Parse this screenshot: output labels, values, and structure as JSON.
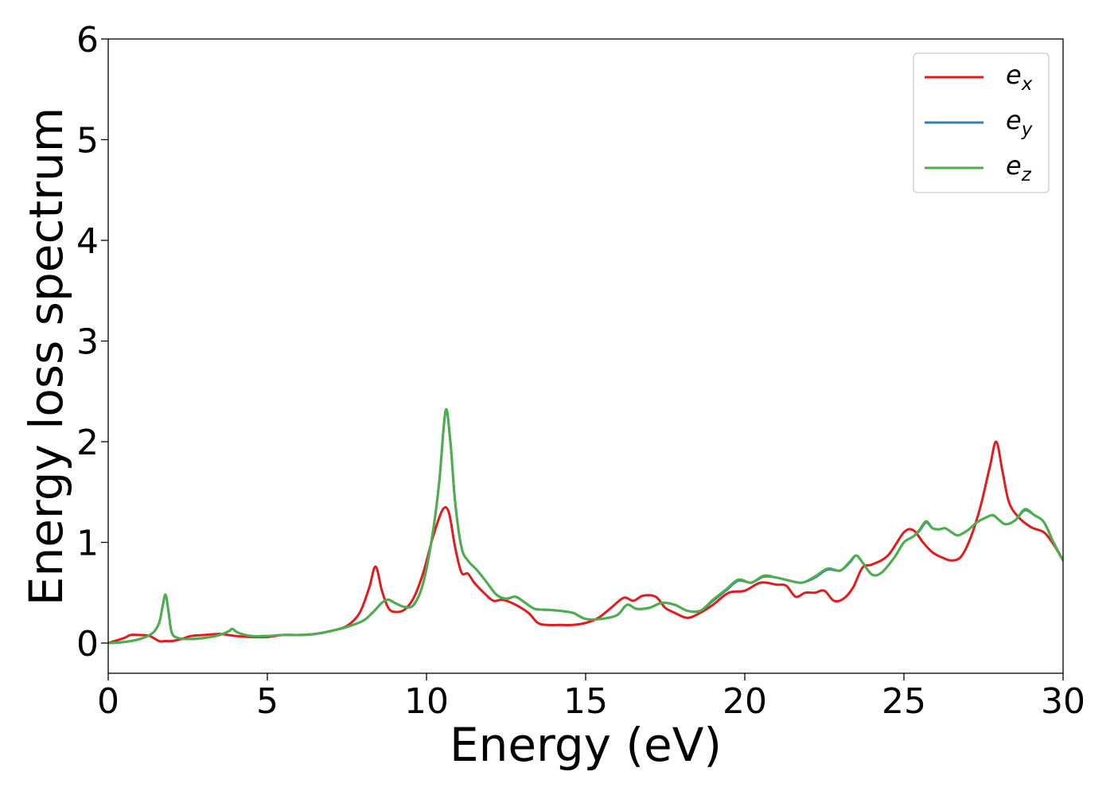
{
  "chart_data": {
    "type": "line",
    "title": "",
    "xlabel": "Energy (eV)",
    "ylabel": "Energy loss spectrum",
    "xlim": [
      0,
      30
    ],
    "ylim": [
      -0.3,
      6
    ],
    "xticks": [
      0,
      5,
      10,
      15,
      20,
      25,
      30
    ],
    "yticks": [
      0,
      1,
      2,
      3,
      4,
      5,
      6
    ],
    "grid": false,
    "legend_position": "top-right",
    "series": [
      {
        "name": "e_x",
        "label_base": "e",
        "label_sub": "x",
        "color": "#e41a1c",
        "x": [
          0,
          0.5,
          0.7,
          1,
          1.3,
          1.6,
          1.8,
          2,
          2.3,
          2.6,
          3,
          3.5,
          4,
          4.5,
          5,
          5.5,
          6,
          6.5,
          7,
          7.5,
          7.9,
          8.2,
          8.4,
          8.6,
          8.8,
          9,
          9.3,
          9.6,
          9.9,
          10.2,
          10.5,
          10.7,
          10.9,
          11.1,
          11.3,
          11.5,
          11.8,
          12.1,
          12.4,
          12.8,
          13.2,
          13.5,
          13.8,
          14.2,
          14.6,
          15,
          15.4,
          15.8,
          16.2,
          16.5,
          16.8,
          17.2,
          17.5,
          17.8,
          18.2,
          18.6,
          19,
          19.5,
          20,
          20.5,
          21,
          21.3,
          21.6,
          21.9,
          22.2,
          22.5,
          22.8,
          23.1,
          23.4,
          23.7,
          24,
          24.5,
          25,
          25.3,
          25.6,
          25.9,
          26.2,
          26.5,
          26.8,
          27.1,
          27.4,
          27.7,
          27.9,
          28.1,
          28.3,
          28.6,
          29,
          29.4,
          29.7,
          30
        ],
        "y": [
          0,
          0.05,
          0.08,
          0.08,
          0.07,
          0.02,
          0.02,
          0.02,
          0.04,
          0.07,
          0.08,
          0.09,
          0.07,
          0.06,
          0.06,
          0.08,
          0.08,
          0.09,
          0.12,
          0.17,
          0.3,
          0.55,
          0.76,
          0.52,
          0.35,
          0.31,
          0.33,
          0.45,
          0.7,
          1.05,
          1.32,
          1.3,
          0.95,
          0.7,
          0.69,
          0.6,
          0.5,
          0.42,
          0.43,
          0.38,
          0.3,
          0.2,
          0.18,
          0.18,
          0.18,
          0.2,
          0.25,
          0.35,
          0.45,
          0.42,
          0.47,
          0.46,
          0.35,
          0.3,
          0.25,
          0.3,
          0.38,
          0.5,
          0.52,
          0.6,
          0.58,
          0.57,
          0.46,
          0.5,
          0.5,
          0.52,
          0.42,
          0.44,
          0.55,
          0.75,
          0.78,
          0.87,
          1.1,
          1.12,
          1.0,
          0.9,
          0.85,
          0.82,
          0.86,
          1.05,
          1.35,
          1.75,
          2.0,
          1.7,
          1.4,
          1.25,
          1.15,
          1.1,
          0.98,
          0.82
        ]
      },
      {
        "name": "e_y",
        "label_base": "e",
        "label_sub": "y",
        "color": "#377eb8",
        "x": [
          0,
          0.5,
          1,
          1.4,
          1.6,
          1.7,
          1.8,
          1.9,
          2,
          2.2,
          2.5,
          3,
          3.5,
          3.8,
          3.9,
          4.1,
          4.5,
          5,
          5.5,
          6,
          6.5,
          7,
          7.5,
          8,
          8.3,
          8.6,
          8.8,
          9,
          9.3,
          9.6,
          9.9,
          10.2,
          10.4,
          10.6,
          10.75,
          10.9,
          11.1,
          11.3,
          11.6,
          11.9,
          12.2,
          12.5,
          12.8,
          13.1,
          13.4,
          13.8,
          14.2,
          14.6,
          15,
          15.5,
          16,
          16.3,
          16.6,
          17,
          17.4,
          17.8,
          18.2,
          18.6,
          19,
          19.4,
          19.8,
          20.2,
          20.6,
          21,
          21.4,
          21.8,
          22.2,
          22.6,
          23,
          23.3,
          23.5,
          23.7,
          24,
          24.3,
          24.7,
          25,
          25.3,
          25.5,
          25.7,
          25.9,
          26.1,
          26.3,
          26.5,
          26.7,
          27,
          27.3,
          27.6,
          27.8,
          28,
          28.2,
          28.5,
          28.8,
          29.1,
          29.4,
          29.7,
          30
        ],
        "y": [
          0,
          0.01,
          0.04,
          0.1,
          0.2,
          0.35,
          0.48,
          0.3,
          0.1,
          0.05,
          0.04,
          0.05,
          0.08,
          0.12,
          0.14,
          0.1,
          0.07,
          0.07,
          0.08,
          0.08,
          0.09,
          0.12,
          0.16,
          0.22,
          0.3,
          0.4,
          0.43,
          0.4,
          0.36,
          0.38,
          0.6,
          1.1,
          1.6,
          2.3,
          2.0,
          1.4,
          0.95,
          0.82,
          0.72,
          0.6,
          0.48,
          0.44,
          0.46,
          0.4,
          0.34,
          0.33,
          0.32,
          0.3,
          0.24,
          0.24,
          0.28,
          0.38,
          0.34,
          0.35,
          0.4,
          0.38,
          0.32,
          0.32,
          0.42,
          0.52,
          0.62,
          0.6,
          0.66,
          0.65,
          0.62,
          0.6,
          0.65,
          0.73,
          0.72,
          0.8,
          0.87,
          0.8,
          0.68,
          0.7,
          0.85,
          1.0,
          1.06,
          1.12,
          1.2,
          1.14,
          1.13,
          1.14,
          1.1,
          1.07,
          1.12,
          1.2,
          1.25,
          1.27,
          1.22,
          1.18,
          1.22,
          1.32,
          1.27,
          1.2,
          1.0,
          0.82
        ]
      },
      {
        "name": "e_z",
        "label_base": "e",
        "label_sub": "z",
        "color": "#4daf4a",
        "x": [
          0,
          0.5,
          1,
          1.4,
          1.6,
          1.7,
          1.8,
          1.9,
          2,
          2.2,
          2.5,
          3,
          3.5,
          3.8,
          3.9,
          4.1,
          4.5,
          5,
          5.5,
          6,
          6.5,
          7,
          7.5,
          8,
          8.3,
          8.6,
          8.8,
          9,
          9.3,
          9.6,
          9.9,
          10.2,
          10.4,
          10.6,
          10.75,
          10.9,
          11.1,
          11.3,
          11.6,
          11.9,
          12.2,
          12.5,
          12.8,
          13.1,
          13.4,
          13.8,
          14.2,
          14.6,
          15,
          15.5,
          16,
          16.3,
          16.6,
          17,
          17.4,
          17.8,
          18.2,
          18.6,
          19,
          19.4,
          19.8,
          20.2,
          20.6,
          21,
          21.4,
          21.8,
          22.2,
          22.6,
          23,
          23.3,
          23.5,
          23.7,
          24,
          24.3,
          24.7,
          25,
          25.3,
          25.5,
          25.7,
          25.9,
          26.1,
          26.3,
          26.5,
          26.7,
          27,
          27.3,
          27.6,
          27.8,
          28,
          28.2,
          28.5,
          28.8,
          29.1,
          29.4,
          29.7,
          30
        ],
        "y": [
          0,
          0.01,
          0.04,
          0.1,
          0.2,
          0.35,
          0.48,
          0.3,
          0.1,
          0.05,
          0.04,
          0.05,
          0.08,
          0.12,
          0.14,
          0.1,
          0.07,
          0.07,
          0.08,
          0.08,
          0.09,
          0.12,
          0.16,
          0.22,
          0.3,
          0.4,
          0.43,
          0.4,
          0.36,
          0.38,
          0.6,
          1.1,
          1.6,
          2.31,
          2.0,
          1.4,
          0.95,
          0.82,
          0.72,
          0.6,
          0.48,
          0.44,
          0.46,
          0.4,
          0.34,
          0.33,
          0.32,
          0.3,
          0.24,
          0.24,
          0.28,
          0.38,
          0.34,
          0.35,
          0.4,
          0.38,
          0.32,
          0.32,
          0.43,
          0.53,
          0.63,
          0.6,
          0.67,
          0.65,
          0.62,
          0.6,
          0.66,
          0.74,
          0.72,
          0.81,
          0.87,
          0.8,
          0.68,
          0.7,
          0.85,
          1.0,
          1.06,
          1.13,
          1.21,
          1.14,
          1.13,
          1.14,
          1.1,
          1.07,
          1.12,
          1.2,
          1.25,
          1.27,
          1.22,
          1.18,
          1.22,
          1.33,
          1.27,
          1.2,
          1.0,
          0.82
        ]
      }
    ]
  }
}
